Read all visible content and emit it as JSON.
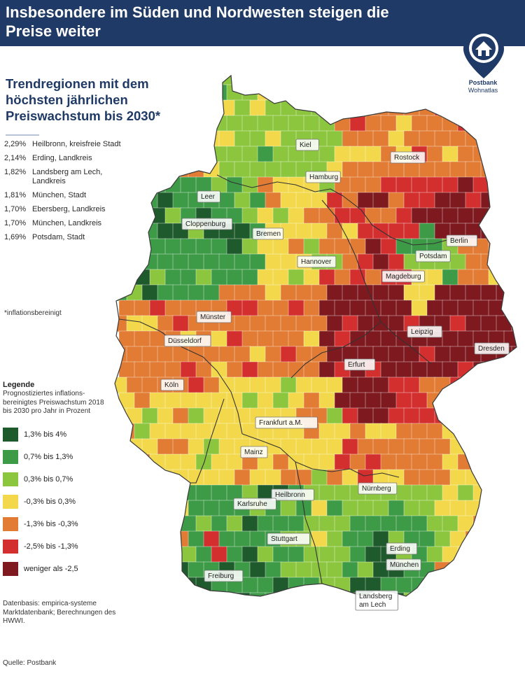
{
  "header": {
    "title": "Insbesondere im Süden und Nordwesten steigen die Preise weiter"
  },
  "logo": {
    "icon": "house-pin-icon",
    "brand": "Postbank",
    "product": "Wohnatlas"
  },
  "subtitle": "Trendregionen mit dem höchsten jährlichen Preiswachstum bis 2030*",
  "ranking": [
    {
      "value": "2,29%",
      "name": "Heilbronn, kreisfreie Stadt"
    },
    {
      "value": "2,14%",
      "name": "Erding, Landkreis"
    },
    {
      "value": "1,82%",
      "name": "Landsberg am Lech, Landkreis"
    },
    {
      "value": "1,81%",
      "name": "München, Stadt"
    },
    {
      "value": "1,70%",
      "name": "Ebersberg, Landkreis"
    },
    {
      "value": "1,70%",
      "name": "München, Landkreis"
    },
    {
      "value": "1,69%",
      "name": "Potsdam, Stadt"
    }
  ],
  "footnote": "*inflationsbereinigt",
  "legend": {
    "title": "Legende",
    "description": "Prognostiziertes inflations-bereinigtes Preiswachstum 2018 bis 2030 pro Jahr in Prozent",
    "items": [
      {
        "label": "1,3% bis 4%",
        "color": "#1e5a2c"
      },
      {
        "label": "0,7% bis 1,3%",
        "color": "#3d9a46"
      },
      {
        "label": "0,3% bis 0,7%",
        "color": "#8cc63f"
      },
      {
        "label": "-0,3% bis 0,3%",
        "color": "#f2d84a"
      },
      {
        "label": "-1,3% bis -0,3%",
        "color": "#e27c35"
      },
      {
        "label": "-2,5% bis -1,3%",
        "color": "#d32f2f"
      },
      {
        "label": "weniger als -2,5",
        "color": "#7e1a1f"
      }
    ]
  },
  "datenbasis": "Datenbasis: empirica-systeme Marktdatenbank; Berechnungen des HWWI.",
  "quelle": "Quelle: Postbank",
  "cities": [
    {
      "name": "Kiel"
    },
    {
      "name": "Rostock"
    },
    {
      "name": "Hamburg"
    },
    {
      "name": "Leer"
    },
    {
      "name": "Cloppenburg"
    },
    {
      "name": "Bremen"
    },
    {
      "name": "Berlin"
    },
    {
      "name": "Potsdam"
    },
    {
      "name": "Hannover"
    },
    {
      "name": "Magdeburg"
    },
    {
      "name": "Münster"
    },
    {
      "name": "Düsseldorf"
    },
    {
      "name": "Leipzig"
    },
    {
      "name": "Dresden"
    },
    {
      "name": "Erfurt"
    },
    {
      "name": "Köln"
    },
    {
      "name": "Frankfurt a.M."
    },
    {
      "name": "Mainz"
    },
    {
      "name": "Nürnberg"
    },
    {
      "name": "Heilbronn"
    },
    {
      "name": "Karlsruhe"
    },
    {
      "name": "Stuttgart"
    },
    {
      "name": "Erding"
    },
    {
      "name": "München"
    },
    {
      "name": "Freiburg"
    },
    {
      "name": "Landsberg am Lech"
    }
  ]
}
